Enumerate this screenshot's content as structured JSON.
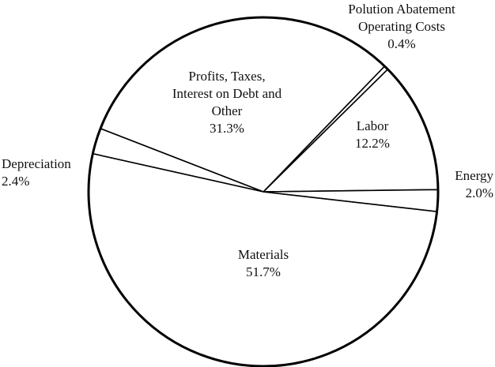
{
  "chart_data": {
    "type": "pie",
    "title": "",
    "slices": [
      {
        "name_lines": [
          "Labor"
        ],
        "label": "Labor",
        "value": 12.2,
        "value_label": "12.2%"
      },
      {
        "name_lines": [
          "Polution Abatement",
          "Operating Costs"
        ],
        "label": "Polution Abatement Operating Costs",
        "value": 0.4,
        "value_label": "0.4%"
      },
      {
        "name_lines": [
          "Profits, Taxes,",
          "Interest on Debt and",
          "Other"
        ],
        "label": "Profits, Taxes, Interest on Debt and Other",
        "value": 31.3,
        "value_label": "31.3%"
      },
      {
        "name_lines": [
          "Depreciation"
        ],
        "label": "Depreciation",
        "value": 2.4,
        "value_label": "2.4%"
      },
      {
        "name_lines": [
          "Materials"
        ],
        "label": "Materials",
        "value": 51.7,
        "value_label": "51.7%"
      },
      {
        "name_lines": [
          "Energy"
        ],
        "label": "Energy",
        "value": 2.0,
        "value_label": "2.0%"
      }
    ],
    "colors": {
      "fill": "#ffffff",
      "stroke": "#000000",
      "text": "#111111"
    },
    "legend": "none",
    "start_direction": "3 o'clock, counter-clockwise"
  }
}
